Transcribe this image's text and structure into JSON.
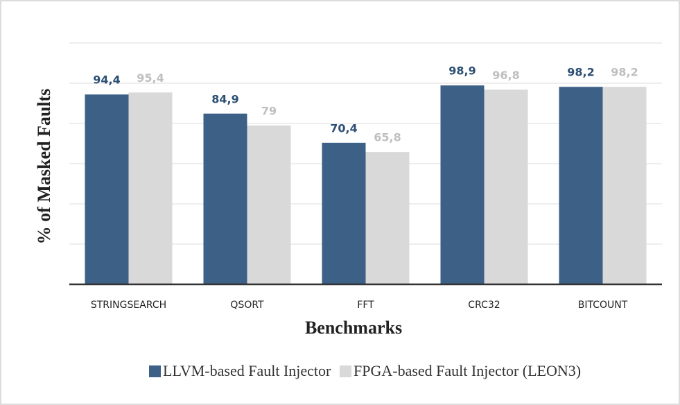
{
  "chart_data": {
    "type": "bar",
    "categories": [
      "STRINGSEARCH",
      "QSORT",
      "FFT",
      "CRC32",
      "BITCOUNT"
    ],
    "series": [
      {
        "name": "LLVM-based Fault Injector",
        "color": "#3d6087",
        "values": [
          94.4,
          84.9,
          70.4,
          98.9,
          98.2
        ],
        "value_labels": [
          "94,4",
          "84,9",
          "70,4",
          "98,9",
          "98,2"
        ],
        "label_color": "#2d4f73"
      },
      {
        "name": "FPGA-based Fault Injector (LEON3)",
        "color": "#d9d9d9",
        "values": [
          95.4,
          79,
          65.8,
          96.8,
          98.2
        ],
        "value_labels": [
          "95,4",
          "79",
          "65,8",
          "96,8",
          "98,2"
        ],
        "label_color": "#bfbfbf"
      }
    ],
    "xlabel": "Benchmarks",
    "ylabel": "% of Masked Faults",
    "ylim": [
      0,
      120
    ],
    "yticks": [
      0,
      20,
      40,
      60,
      80,
      100,
      120
    ],
    "grid": true,
    "legend": "bottom"
  }
}
